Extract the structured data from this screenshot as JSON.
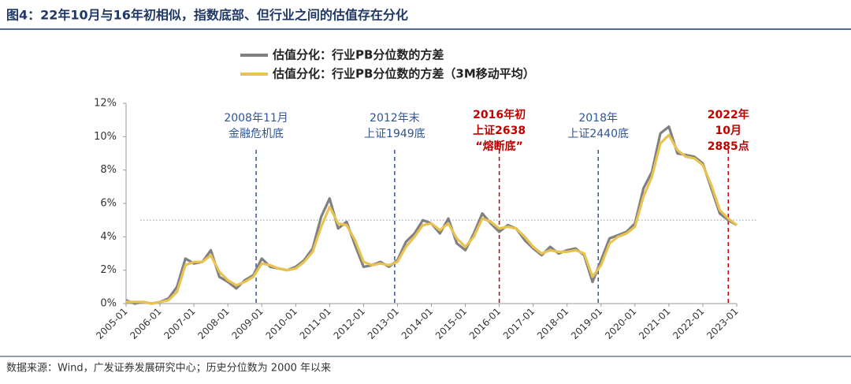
{
  "chart_data": {
    "type": "line",
    "title": "图4：22年10月与16年初相似，指数底部、但行业之间的估值存在分化",
    "source": "数据来源：Wind，广发证券发展研究中心；历史分位数为 2000 年以来",
    "x": [
      "2005-01",
      "2005-04",
      "2005-07",
      "2005-10",
      "2006-01",
      "2006-04",
      "2006-07",
      "2006-10",
      "2007-01",
      "2007-04",
      "2007-07",
      "2007-10",
      "2008-01",
      "2008-04",
      "2008-07",
      "2008-10",
      "2009-01",
      "2009-04",
      "2009-07",
      "2009-10",
      "2010-01",
      "2010-04",
      "2010-07",
      "2010-10",
      "2011-01",
      "2011-04",
      "2011-07",
      "2011-10",
      "2012-01",
      "2012-04",
      "2012-07",
      "2012-10",
      "2013-01",
      "2013-04",
      "2013-07",
      "2013-10",
      "2014-01",
      "2014-04",
      "2014-07",
      "2014-10",
      "2015-01",
      "2015-04",
      "2015-07",
      "2015-10",
      "2016-01",
      "2016-04",
      "2016-07",
      "2016-10",
      "2017-01",
      "2017-04",
      "2017-07",
      "2017-10",
      "2018-01",
      "2018-04",
      "2018-07",
      "2018-10",
      "2019-01",
      "2019-04",
      "2019-07",
      "2019-10",
      "2020-01",
      "2020-04",
      "2020-07",
      "2020-10",
      "2021-01",
      "2021-04",
      "2021-07",
      "2021-10",
      "2022-01",
      "2022-04",
      "2022-07",
      "2022-10",
      "2023-01"
    ],
    "series": [
      {
        "name": "估值分化：行业PB分位数的方差",
        "color": "#808080",
        "values": [
          0.2,
          0.0,
          0.1,
          0.0,
          0.1,
          0.3,
          1.0,
          2.7,
          2.4,
          2.5,
          3.2,
          1.6,
          1.3,
          0.9,
          1.4,
          1.7,
          2.7,
          2.2,
          2.1,
          2.0,
          2.2,
          2.6,
          3.3,
          5.2,
          6.3,
          4.5,
          4.9,
          3.5,
          2.2,
          2.3,
          2.5,
          2.2,
          2.6,
          3.7,
          4.2,
          5.0,
          4.8,
          4.2,
          5.1,
          3.6,
          3.2,
          4.2,
          5.4,
          4.8,
          4.3,
          4.7,
          4.5,
          3.8,
          3.3,
          2.9,
          3.4,
          3.0,
          3.2,
          3.3,
          2.9,
          1.3,
          2.6,
          3.9,
          4.1,
          4.3,
          4.8,
          6.9,
          7.9,
          10.2,
          10.6,
          9.0,
          8.9,
          8.8,
          8.4,
          6.9,
          5.4,
          5.0,
          4.7
        ]
      },
      {
        "name": "估值分化：行业PB分位数的方差（3M移动平均）",
        "color": "#e8c351",
        "values": [
          0.1,
          0.1,
          0.1,
          0.0,
          0.1,
          0.2,
          0.7,
          2.3,
          2.5,
          2.5,
          2.9,
          1.9,
          1.4,
          1.1,
          1.3,
          1.6,
          2.4,
          2.3,
          2.1,
          2.0,
          2.1,
          2.5,
          3.1,
          4.6,
          5.8,
          4.8,
          4.7,
          3.8,
          2.5,
          2.3,
          2.4,
          2.3,
          2.5,
          3.4,
          4.0,
          4.7,
          4.8,
          4.4,
          4.8,
          3.9,
          3.4,
          4.0,
          5.1,
          4.9,
          4.5,
          4.6,
          4.5,
          4.0,
          3.4,
          3.0,
          3.2,
          3.1,
          3.1,
          3.2,
          3.0,
          1.6,
          2.3,
          3.6,
          4.0,
          4.2,
          4.6,
          6.4,
          7.6,
          9.6,
          10.1,
          9.2,
          8.8,
          8.7,
          8.3,
          7.1,
          5.6,
          5.1,
          4.7
        ]
      }
    ],
    "xticks": [
      "2005-01",
      "2006-01",
      "2007-01",
      "2008-01",
      "2009-01",
      "2010-01",
      "2011-01",
      "2012-01",
      "2013-01",
      "2014-01",
      "2015-01",
      "2016-01",
      "2017-01",
      "2018-01",
      "2019-01",
      "2020-01",
      "2021-01",
      "2022-01",
      "2023-01"
    ],
    "ylim": [
      0,
      12
    ],
    "yticks": [
      {
        "value": 0,
        "label": "0%"
      },
      {
        "value": 2,
        "label": "2%"
      },
      {
        "value": 4,
        "label": "4%"
      },
      {
        "value": 6,
        "label": "6%"
      },
      {
        "value": 8,
        "label": "8%"
      },
      {
        "value": 10,
        "label": "10%"
      },
      {
        "value": 12,
        "label": "12%"
      }
    ],
    "reference_line": 5,
    "annotations": [
      {
        "x": "2008-11",
        "color": "#2f5597",
        "lines": [
          "2008年11月",
          "金融危机底"
        ]
      },
      {
        "x": "2012-12",
        "color": "#2f5597",
        "lines": [
          "2012年末",
          "上证1949底"
        ]
      },
      {
        "x": "2016-01",
        "color": "#c00000",
        "lines": [
          "2016年初",
          "上证2638",
          "“熔断底”"
        ]
      },
      {
        "x": "2018-12",
        "color": "#2f5597",
        "lines": [
          "2018年",
          "上证2440底"
        ]
      },
      {
        "x": "2022-10",
        "color": "#c00000",
        "lines": [
          "2022年",
          "10月",
          "2885点"
        ]
      }
    ]
  }
}
